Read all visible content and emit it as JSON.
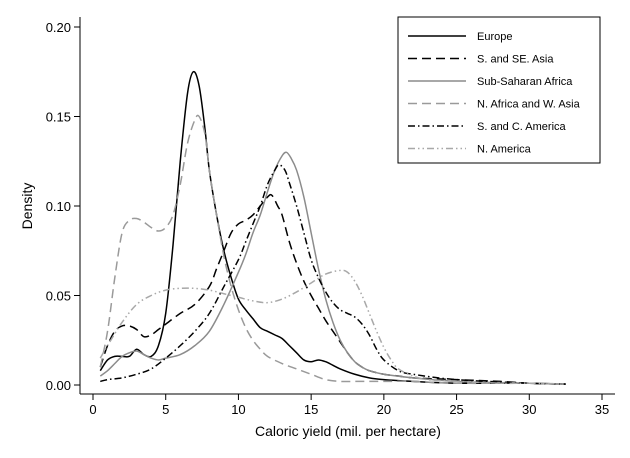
{
  "chart_data": {
    "type": "line",
    "title": "",
    "xlabel": "Caloric yield (mil. per hectare)",
    "ylabel": "Density",
    "xlim": [
      0,
      35
    ],
    "ylim": [
      0,
      0.2
    ],
    "xticks": [
      0,
      5,
      10,
      15,
      20,
      25,
      30,
      35
    ],
    "xtick_labels": [
      "0",
      "5",
      "10",
      "15",
      "20",
      "25",
      "30",
      "35"
    ],
    "yticks": [
      0,
      0.05,
      0.1,
      0.15,
      0.2
    ],
    "ytick_labels": [
      "0.00",
      "0.05",
      "0.10",
      "0.15",
      "0.20"
    ],
    "grid": false,
    "legend_position": "top-right",
    "series": [
      {
        "name": "Europe",
        "color": "#000000",
        "dash": "solid",
        "points": [
          [
            0.5,
            0.008
          ],
          [
            1,
            0.014
          ],
          [
            1.5,
            0.016
          ],
          [
            2,
            0.016
          ],
          [
            2.5,
            0.016
          ],
          [
            3,
            0.02
          ],
          [
            3.5,
            0.017
          ],
          [
            4,
            0.016
          ],
          [
            4.5,
            0.022
          ],
          [
            5,
            0.04
          ],
          [
            5.5,
            0.078
          ],
          [
            6,
            0.125
          ],
          [
            6.5,
            0.163
          ],
          [
            6.9,
            0.175
          ],
          [
            7.3,
            0.167
          ],
          [
            7.7,
            0.143
          ],
          [
            8,
            0.12
          ],
          [
            8.5,
            0.095
          ],
          [
            9,
            0.075
          ],
          [
            9.5,
            0.06
          ],
          [
            10,
            0.048
          ],
          [
            10.5,
            0.042
          ],
          [
            11,
            0.037
          ],
          [
            11.5,
            0.032
          ],
          [
            12,
            0.03
          ],
          [
            12.5,
            0.028
          ],
          [
            13,
            0.026
          ],
          [
            13.5,
            0.022
          ],
          [
            14,
            0.018
          ],
          [
            14.5,
            0.014
          ],
          [
            15,
            0.013
          ],
          [
            15.5,
            0.014
          ],
          [
            16,
            0.013
          ],
          [
            16.5,
            0.011
          ],
          [
            17,
            0.009
          ],
          [
            18,
            0.006
          ],
          [
            19,
            0.004
          ],
          [
            20,
            0.003
          ],
          [
            22,
            0.002
          ],
          [
            25,
            0.001
          ],
          [
            30,
            0.001
          ],
          [
            32.5,
            0.0005
          ]
        ]
      },
      {
        "name": "S. and SE. Asia",
        "color": "#000000",
        "dash": "long-dash",
        "points": [
          [
            0.5,
            0.01
          ],
          [
            1,
            0.022
          ],
          [
            1.5,
            0.03
          ],
          [
            2,
            0.033
          ],
          [
            2.5,
            0.033
          ],
          [
            3,
            0.031
          ],
          [
            3.5,
            0.027
          ],
          [
            4,
            0.028
          ],
          [
            4.5,
            0.031
          ],
          [
            5,
            0.034
          ],
          [
            6,
            0.04
          ],
          [
            7,
            0.045
          ],
          [
            8,
            0.055
          ],
          [
            8.5,
            0.065
          ],
          [
            9,
            0.075
          ],
          [
            9.5,
            0.085
          ],
          [
            10,
            0.09
          ],
          [
            10.5,
            0.092
          ],
          [
            11,
            0.095
          ],
          [
            11.5,
            0.1
          ],
          [
            12,
            0.105
          ],
          [
            12.3,
            0.106
          ],
          [
            12.7,
            0.1
          ],
          [
            13,
            0.095
          ],
          [
            13.5,
            0.08
          ],
          [
            14,
            0.068
          ],
          [
            14.5,
            0.058
          ],
          [
            15,
            0.05
          ],
          [
            15.5,
            0.043
          ],
          [
            16,
            0.036
          ],
          [
            16.5,
            0.03
          ],
          [
            17,
            0.024
          ],
          [
            17.5,
            0.018
          ],
          [
            18,
            0.013
          ],
          [
            18.5,
            0.01
          ],
          [
            19,
            0.008
          ],
          [
            20,
            0.006
          ],
          [
            21,
            0.005
          ],
          [
            22,
            0.004
          ],
          [
            25,
            0.003
          ],
          [
            28,
            0.002
          ],
          [
            30,
            0.001
          ],
          [
            32.5,
            0.0005
          ]
        ]
      },
      {
        "name": "Sub-Saharan Africa",
        "color": "#8c8c8c",
        "dash": "solid",
        "points": [
          [
            0.5,
            0.005
          ],
          [
            1,
            0.008
          ],
          [
            1.5,
            0.012
          ],
          [
            2,
            0.016
          ],
          [
            2.5,
            0.018
          ],
          [
            3,
            0.019
          ],
          [
            3.5,
            0.017
          ],
          [
            4,
            0.015
          ],
          [
            4.5,
            0.014
          ],
          [
            5,
            0.015
          ],
          [
            6,
            0.017
          ],
          [
            7,
            0.022
          ],
          [
            8,
            0.03
          ],
          [
            9,
            0.045
          ],
          [
            10,
            0.063
          ],
          [
            10.5,
            0.073
          ],
          [
            11,
            0.085
          ],
          [
            11.5,
            0.095
          ],
          [
            12,
            0.108
          ],
          [
            12.5,
            0.12
          ],
          [
            13,
            0.128
          ],
          [
            13.3,
            0.13
          ],
          [
            13.6,
            0.127
          ],
          [
            14,
            0.12
          ],
          [
            14.5,
            0.105
          ],
          [
            15,
            0.085
          ],
          [
            15.5,
            0.065
          ],
          [
            16,
            0.048
          ],
          [
            16.5,
            0.035
          ],
          [
            17,
            0.025
          ],
          [
            17.5,
            0.018
          ],
          [
            18,
            0.013
          ],
          [
            18.5,
            0.01
          ],
          [
            19,
            0.008
          ],
          [
            20,
            0.006
          ],
          [
            22,
            0.004
          ],
          [
            25,
            0.002
          ],
          [
            30,
            0.001
          ],
          [
            32.5,
            0.0005
          ]
        ]
      },
      {
        "name": "N. Africa and W. Asia",
        "color": "#9a9a9a",
        "dash": "long-dash",
        "points": [
          [
            0.5,
            0.01
          ],
          [
            1,
            0.03
          ],
          [
            1.5,
            0.06
          ],
          [
            2,
            0.085
          ],
          [
            2.5,
            0.092
          ],
          [
            3,
            0.093
          ],
          [
            3.5,
            0.091
          ],
          [
            4,
            0.088
          ],
          [
            4.5,
            0.086
          ],
          [
            5,
            0.088
          ],
          [
            5.5,
            0.095
          ],
          [
            6,
            0.112
          ],
          [
            6.5,
            0.135
          ],
          [
            7,
            0.148
          ],
          [
            7.3,
            0.15
          ],
          [
            7.7,
            0.14
          ],
          [
            8,
            0.12
          ],
          [
            8.5,
            0.095
          ],
          [
            9,
            0.072
          ],
          [
            9.5,
            0.055
          ],
          [
            10,
            0.042
          ],
          [
            10.5,
            0.032
          ],
          [
            11,
            0.025
          ],
          [
            11.5,
            0.02
          ],
          [
            12,
            0.016
          ],
          [
            13,
            0.012
          ],
          [
            14,
            0.009
          ],
          [
            15,
            0.006
          ],
          [
            16,
            0.003
          ],
          [
            17,
            0.002
          ],
          [
            18,
            0.002
          ],
          [
            19,
            0.002
          ],
          [
            20,
            0.002
          ],
          [
            22,
            0.002
          ],
          [
            25,
            0.001
          ],
          [
            30,
            0.001
          ],
          [
            32.5,
            0.0005
          ]
        ]
      },
      {
        "name": "S. and C. America",
        "color": "#000000",
        "dash": "dash-dot",
        "points": [
          [
            0.5,
            0.002
          ],
          [
            1,
            0.003
          ],
          [
            2,
            0.004
          ],
          [
            3,
            0.006
          ],
          [
            4,
            0.009
          ],
          [
            5,
            0.015
          ],
          [
            6,
            0.022
          ],
          [
            7,
            0.03
          ],
          [
            8,
            0.04
          ],
          [
            9,
            0.055
          ],
          [
            10,
            0.07
          ],
          [
            10.5,
            0.08
          ],
          [
            11,
            0.09
          ],
          [
            11.5,
            0.1
          ],
          [
            12,
            0.112
          ],
          [
            12.5,
            0.12
          ],
          [
            12.8,
            0.123
          ],
          [
            13.2,
            0.12
          ],
          [
            13.5,
            0.113
          ],
          [
            14,
            0.1
          ],
          [
            14.5,
            0.085
          ],
          [
            15,
            0.07
          ],
          [
            15.5,
            0.06
          ],
          [
            16,
            0.052
          ],
          [
            16.5,
            0.046
          ],
          [
            17,
            0.042
          ],
          [
            17.5,
            0.04
          ],
          [
            18,
            0.038
          ],
          [
            18.5,
            0.034
          ],
          [
            19,
            0.028
          ],
          [
            19.5,
            0.02
          ],
          [
            20,
            0.014
          ],
          [
            21,
            0.008
          ],
          [
            22,
            0.006
          ],
          [
            25,
            0.003
          ],
          [
            30,
            0.001
          ],
          [
            32.5,
            0.0005
          ]
        ]
      },
      {
        "name": "N. America",
        "color": "#a8a8a8",
        "dash": "dash-dot-dot",
        "points": [
          [
            0.5,
            0.015
          ],
          [
            1,
            0.022
          ],
          [
            2,
            0.035
          ],
          [
            3,
            0.045
          ],
          [
            4,
            0.05
          ],
          [
            5,
            0.053
          ],
          [
            6,
            0.054
          ],
          [
            7,
            0.054
          ],
          [
            8,
            0.053
          ],
          [
            9,
            0.051
          ],
          [
            10,
            0.049
          ],
          [
            11,
            0.047
          ],
          [
            12,
            0.046
          ],
          [
            13,
            0.048
          ],
          [
            14,
            0.052
          ],
          [
            15,
            0.057
          ],
          [
            16,
            0.062
          ],
          [
            17,
            0.064
          ],
          [
            17.5,
            0.063
          ],
          [
            18,
            0.058
          ],
          [
            18.5,
            0.05
          ],
          [
            19,
            0.04
          ],
          [
            19.5,
            0.03
          ],
          [
            20,
            0.021
          ],
          [
            20.5,
            0.014
          ],
          [
            21,
            0.009
          ],
          [
            22,
            0.005
          ],
          [
            23,
            0.003
          ],
          [
            25,
            0.002
          ],
          [
            28,
            0.001
          ],
          [
            30,
            0.001
          ],
          [
            32.5,
            0.0005
          ]
        ]
      }
    ]
  }
}
